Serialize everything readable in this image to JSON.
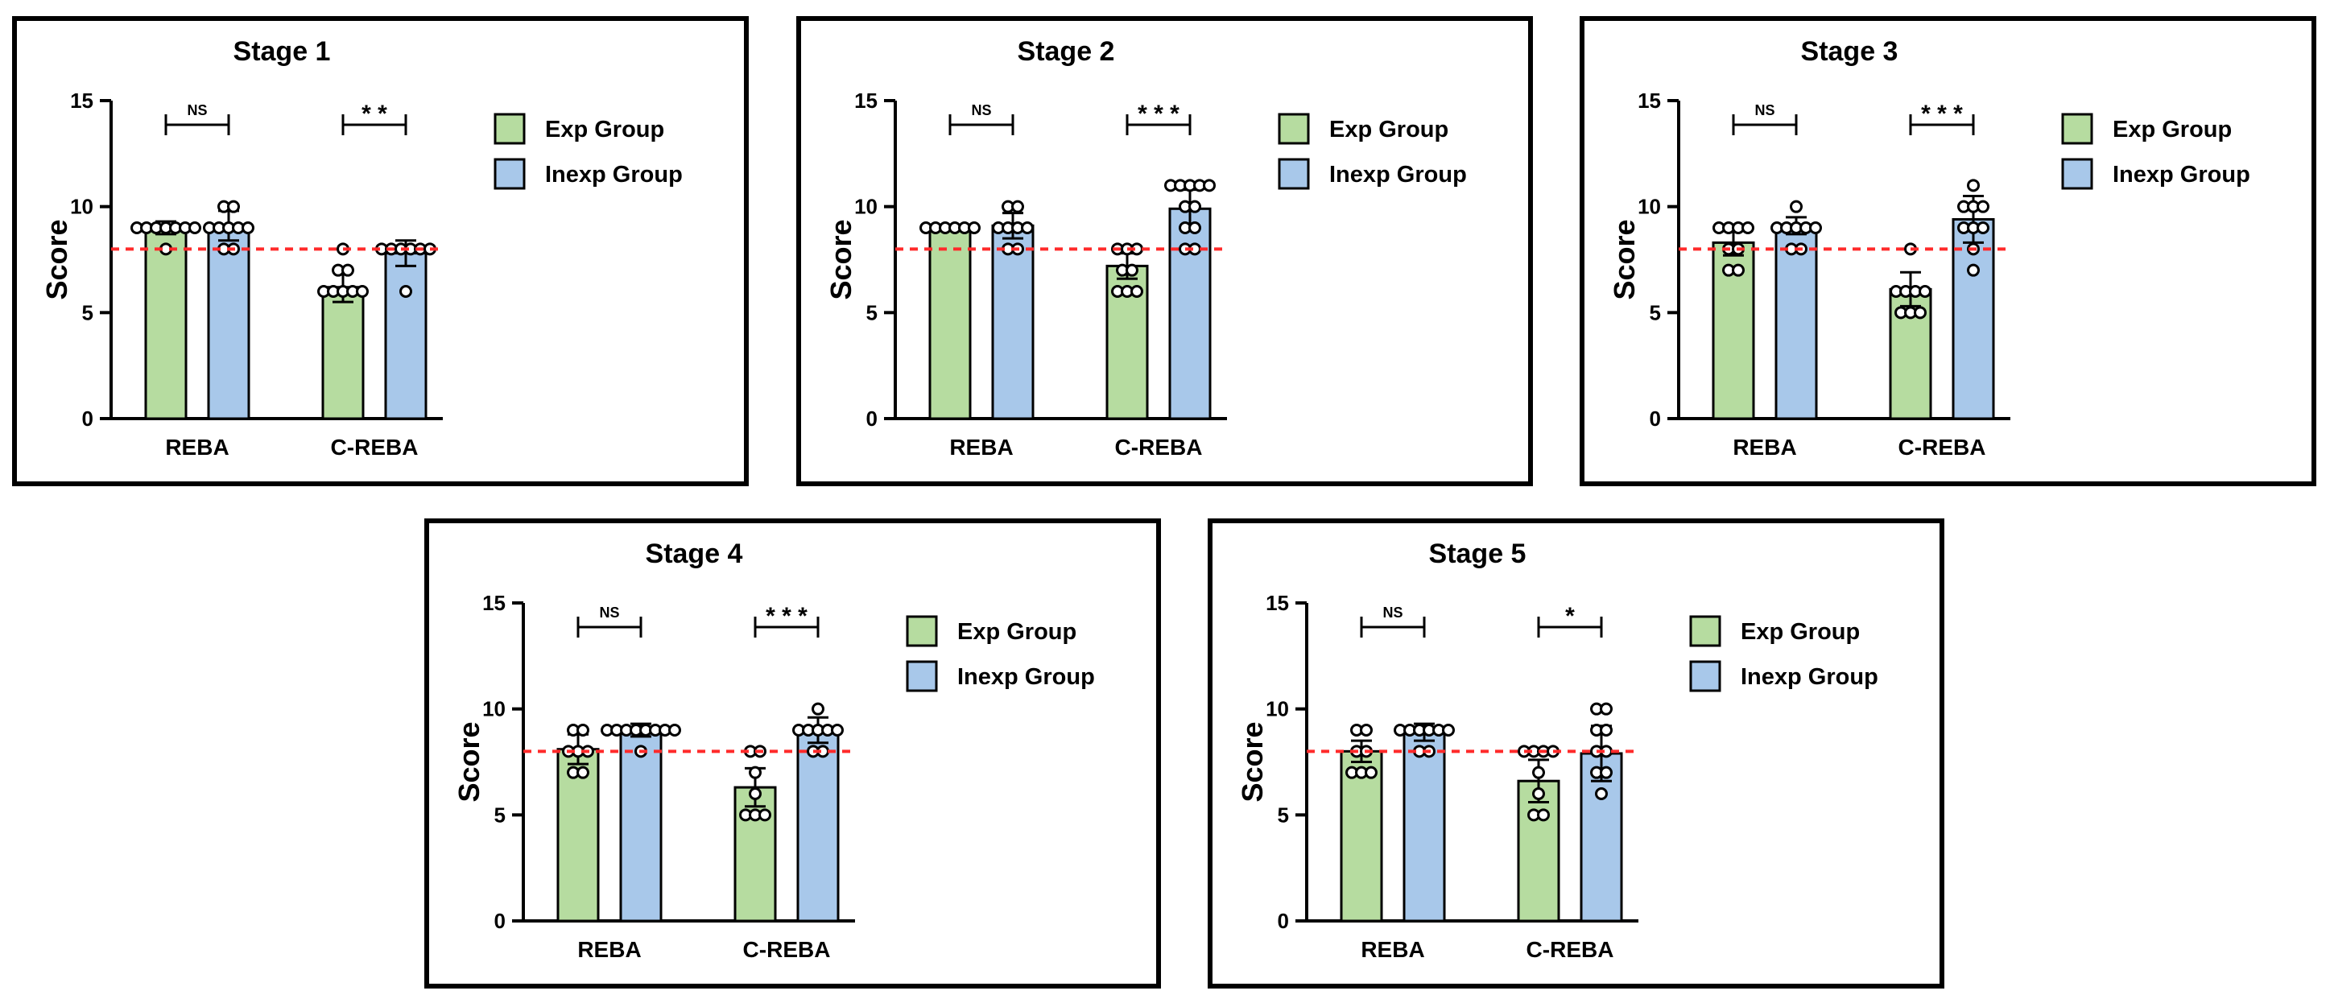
{
  "colors": {
    "exp": "#b6dca0",
    "inexp": "#a8c8ea",
    "threshold": "#ff2a2a",
    "frame": "#000000",
    "background": "#ffffff"
  },
  "chart_data": [
    {
      "type": "bar",
      "title": "Stage 1",
      "ylabel": "Score",
      "xlabel": "",
      "ylim": [
        0,
        15
      ],
      "yticks": [
        "0",
        "5",
        "10",
        "15"
      ],
      "categories": [
        "REBA",
        "C-REBA"
      ],
      "threshold": 8,
      "legend_position": "right",
      "series": [
        {
          "name": "Exp Group",
          "values": [
            9.0,
            6.2
          ],
          "errors": [
            0.3,
            0.7
          ],
          "points": [
            [
              8,
              9,
              9,
              9,
              9,
              9,
              9,
              9
            ],
            [
              6,
              6,
              6,
              6,
              6,
              7,
              7,
              8
            ]
          ]
        },
        {
          "name": "Inexp Group",
          "values": [
            9.1,
            7.8
          ],
          "errors": [
            0.7,
            0.6
          ],
          "points": [
            [
              8,
              8,
              9,
              9,
              9,
              9,
              9,
              10,
              10
            ],
            [
              6,
              8,
              8,
              8,
              8,
              8,
              8
            ]
          ]
        }
      ],
      "significance": [
        "NS",
        "* *"
      ]
    },
    {
      "type": "bar",
      "title": "Stage 2",
      "ylabel": "Score",
      "xlabel": "",
      "ylim": [
        0,
        15
      ],
      "yticks": [
        "0",
        "5",
        "10",
        "15"
      ],
      "categories": [
        "REBA",
        "C-REBA"
      ],
      "threshold": 8,
      "legend_position": "right",
      "series": [
        {
          "name": "Exp Group",
          "values": [
            9.0,
            7.2
          ],
          "errors": [
            0.1,
            0.6
          ],
          "points": [
            [
              9,
              9,
              9,
              9,
              9,
              9
            ],
            [
              6,
              6,
              6,
              7,
              7,
              8,
              8,
              8
            ]
          ]
        },
        {
          "name": "Inexp Group",
          "values": [
            9.1,
            9.9
          ],
          "errors": [
            0.6,
            0.9
          ],
          "points": [
            [
              8,
              8,
              9,
              9,
              9,
              9,
              10,
              10
            ],
            [
              8,
              8,
              9,
              9,
              10,
              10,
              11,
              11,
              11,
              11,
              11
            ]
          ]
        }
      ],
      "significance": [
        "NS",
        "* * *"
      ]
    },
    {
      "type": "bar",
      "title": "Stage 3",
      "ylabel": "Score",
      "xlabel": "",
      "ylim": [
        0,
        15
      ],
      "yticks": [
        "0",
        "5",
        "10",
        "15"
      ],
      "categories": [
        "REBA",
        "C-REBA"
      ],
      "threshold": 8,
      "legend_position": "right",
      "series": [
        {
          "name": "Exp Group",
          "values": [
            8.3,
            6.1
          ],
          "errors": [
            0.6,
            0.8
          ],
          "points": [
            [
              7,
              7,
              8,
              8,
              9,
              9,
              9,
              9
            ],
            [
              5,
              5,
              5,
              6,
              6,
              6,
              6,
              8
            ]
          ]
        },
        {
          "name": "Inexp Group",
          "values": [
            9.1,
            9.4
          ],
          "errors": [
            0.4,
            1.1
          ],
          "points": [
            [
              8,
              8,
              9,
              9,
              9,
              9,
              9,
              10
            ],
            [
              7,
              8,
              9,
              9,
              9,
              10,
              10,
              10,
              11
            ]
          ]
        }
      ],
      "significance": [
        "NS",
        "* * *"
      ]
    },
    {
      "type": "bar",
      "title": "Stage 4",
      "ylabel": "Score",
      "xlabel": "",
      "ylim": [
        0,
        15
      ],
      "yticks": [
        "0",
        "5",
        "10",
        "15"
      ],
      "categories": [
        "REBA",
        "C-REBA"
      ],
      "threshold": 8,
      "legend_position": "right",
      "series": [
        {
          "name": "Exp Group",
          "values": [
            8.1,
            6.3
          ],
          "errors": [
            0.7,
            0.9
          ],
          "points": [
            [
              7,
              7,
              8,
              8,
              8,
              9,
              9
            ],
            [
              5,
              5,
              5,
              6,
              7,
              8,
              8
            ]
          ]
        },
        {
          "name": "Inexp Group",
          "values": [
            9.0,
            9.0
          ],
          "errors": [
            0.3,
            0.6
          ],
          "points": [
            [
              8,
              9,
              9,
              9,
              9,
              9,
              9,
              9,
              9
            ],
            [
              8,
              8,
              9,
              9,
              9,
              9,
              9,
              10
            ]
          ]
        }
      ],
      "significance": [
        "NS",
        "* * *"
      ]
    },
    {
      "type": "bar",
      "title": "Stage 5",
      "ylabel": "Score",
      "xlabel": "",
      "ylim": [
        0,
        15
      ],
      "yticks": [
        "0",
        "5",
        "10",
        "15"
      ],
      "categories": [
        "REBA",
        "C-REBA"
      ],
      "threshold": 8,
      "legend_position": "right",
      "series": [
        {
          "name": "Exp Group",
          "values": [
            8.0,
            6.6
          ],
          "errors": [
            0.5,
            1.0
          ],
          "points": [
            [
              7,
              7,
              7,
              8,
              8,
              9,
              9
            ],
            [
              5,
              5,
              6,
              7,
              8,
              8,
              8,
              8
            ]
          ]
        },
        {
          "name": "Inexp Group",
          "values": [
            8.9,
            7.9
          ],
          "errors": [
            0.4,
            1.3
          ],
          "points": [
            [
              8,
              8,
              9,
              9,
              9,
              9,
              9,
              9
            ],
            [
              6,
              7,
              7,
              8,
              8,
              9,
              9,
              10,
              10
            ]
          ]
        }
      ],
      "significance": [
        "NS",
        "*"
      ]
    }
  ]
}
